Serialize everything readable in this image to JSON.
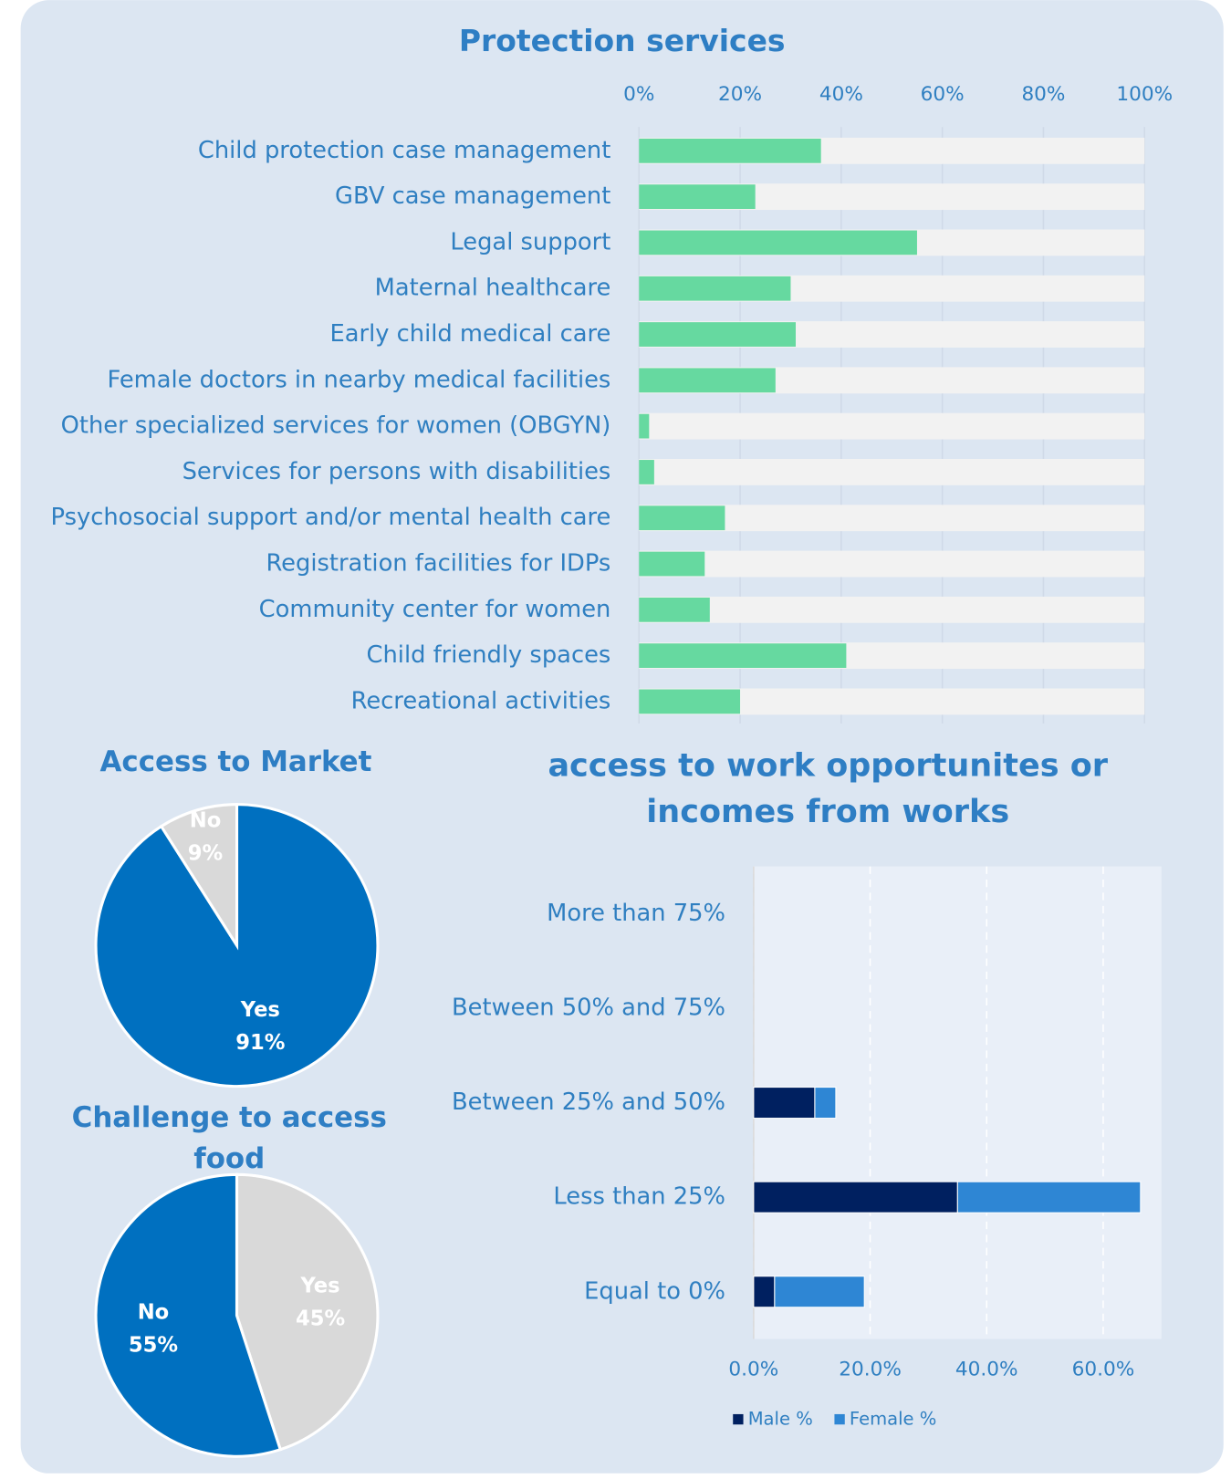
{
  "chart_data": [
    {
      "type": "hbar",
      "title": "Protection services",
      "categories": [
        "Child protection case management",
        "GBV case management",
        "Legal support",
        "Maternal healthcare",
        "Early child medical care",
        "Female doctors in nearby medical facilities",
        "Other specialized services for women (OBGYN)",
        "Services for persons with disabilities",
        "Psychosocial support and/or mental health care",
        "Registration facilities for IDPs",
        "Community center for women",
        "Child friendly spaces",
        "Recreational activities"
      ],
      "values": [
        36,
        23,
        55,
        30,
        31,
        27,
        2,
        3,
        17,
        13,
        14,
        41,
        20
      ],
      "color": "#66d9a0",
      "xlim": [
        0,
        100
      ],
      "xticks": [
        {
          "value": 0,
          "label": "0%"
        },
        {
          "value": 20,
          "label": "20%"
        },
        {
          "value": 40,
          "label": "40%"
        },
        {
          "value": 60,
          "label": "60%"
        },
        {
          "value": 80,
          "label": "80%"
        },
        {
          "value": 100,
          "label": "100%"
        }
      ],
      "grid": true
    },
    {
      "type": "pie",
      "title": [
        "Access to Market"
      ],
      "categories": [
        "Yes",
        "No"
      ],
      "values": [
        91,
        9
      ],
      "value_labels": [
        "91%",
        "9%"
      ],
      "colors": [
        "#0070c0",
        "#d9d9d9"
      ]
    },
    {
      "type": "pie",
      "title": [
        "Challenge to access",
        "food"
      ],
      "categories": [
        "Yes",
        "No"
      ],
      "values": [
        45,
        55
      ],
      "value_labels": [
        "45%",
        "55%"
      ],
      "colors": [
        "#d9d9d9",
        "#0070c0"
      ]
    },
    {
      "type": "stacked_hbar",
      "title": [
        "access to work opportunites or",
        "incomes from works"
      ],
      "categories": [
        "More than 75%",
        "Between 50% and 75%",
        "Between 25% and 50%",
        "Less than 25%",
        "Equal to 0%"
      ],
      "series": [
        {
          "name": "Male %",
          "color": "#002060",
          "values": [
            0,
            0,
            10.5,
            35,
            3.6
          ]
        },
        {
          "name": "Female %",
          "color": "#2e86d4",
          "values": [
            0,
            0,
            3.6,
            31.4,
            15.4
          ]
        }
      ],
      "xlim": [
        0,
        70
      ],
      "xticks": [
        {
          "value": 0,
          "label": "0.0%"
        },
        {
          "value": 20,
          "label": "20.0%"
        },
        {
          "value": 40,
          "label": "40.0%"
        },
        {
          "value": 60,
          "label": "60.0%"
        }
      ],
      "grid": true,
      "legend": "bottom"
    }
  ]
}
